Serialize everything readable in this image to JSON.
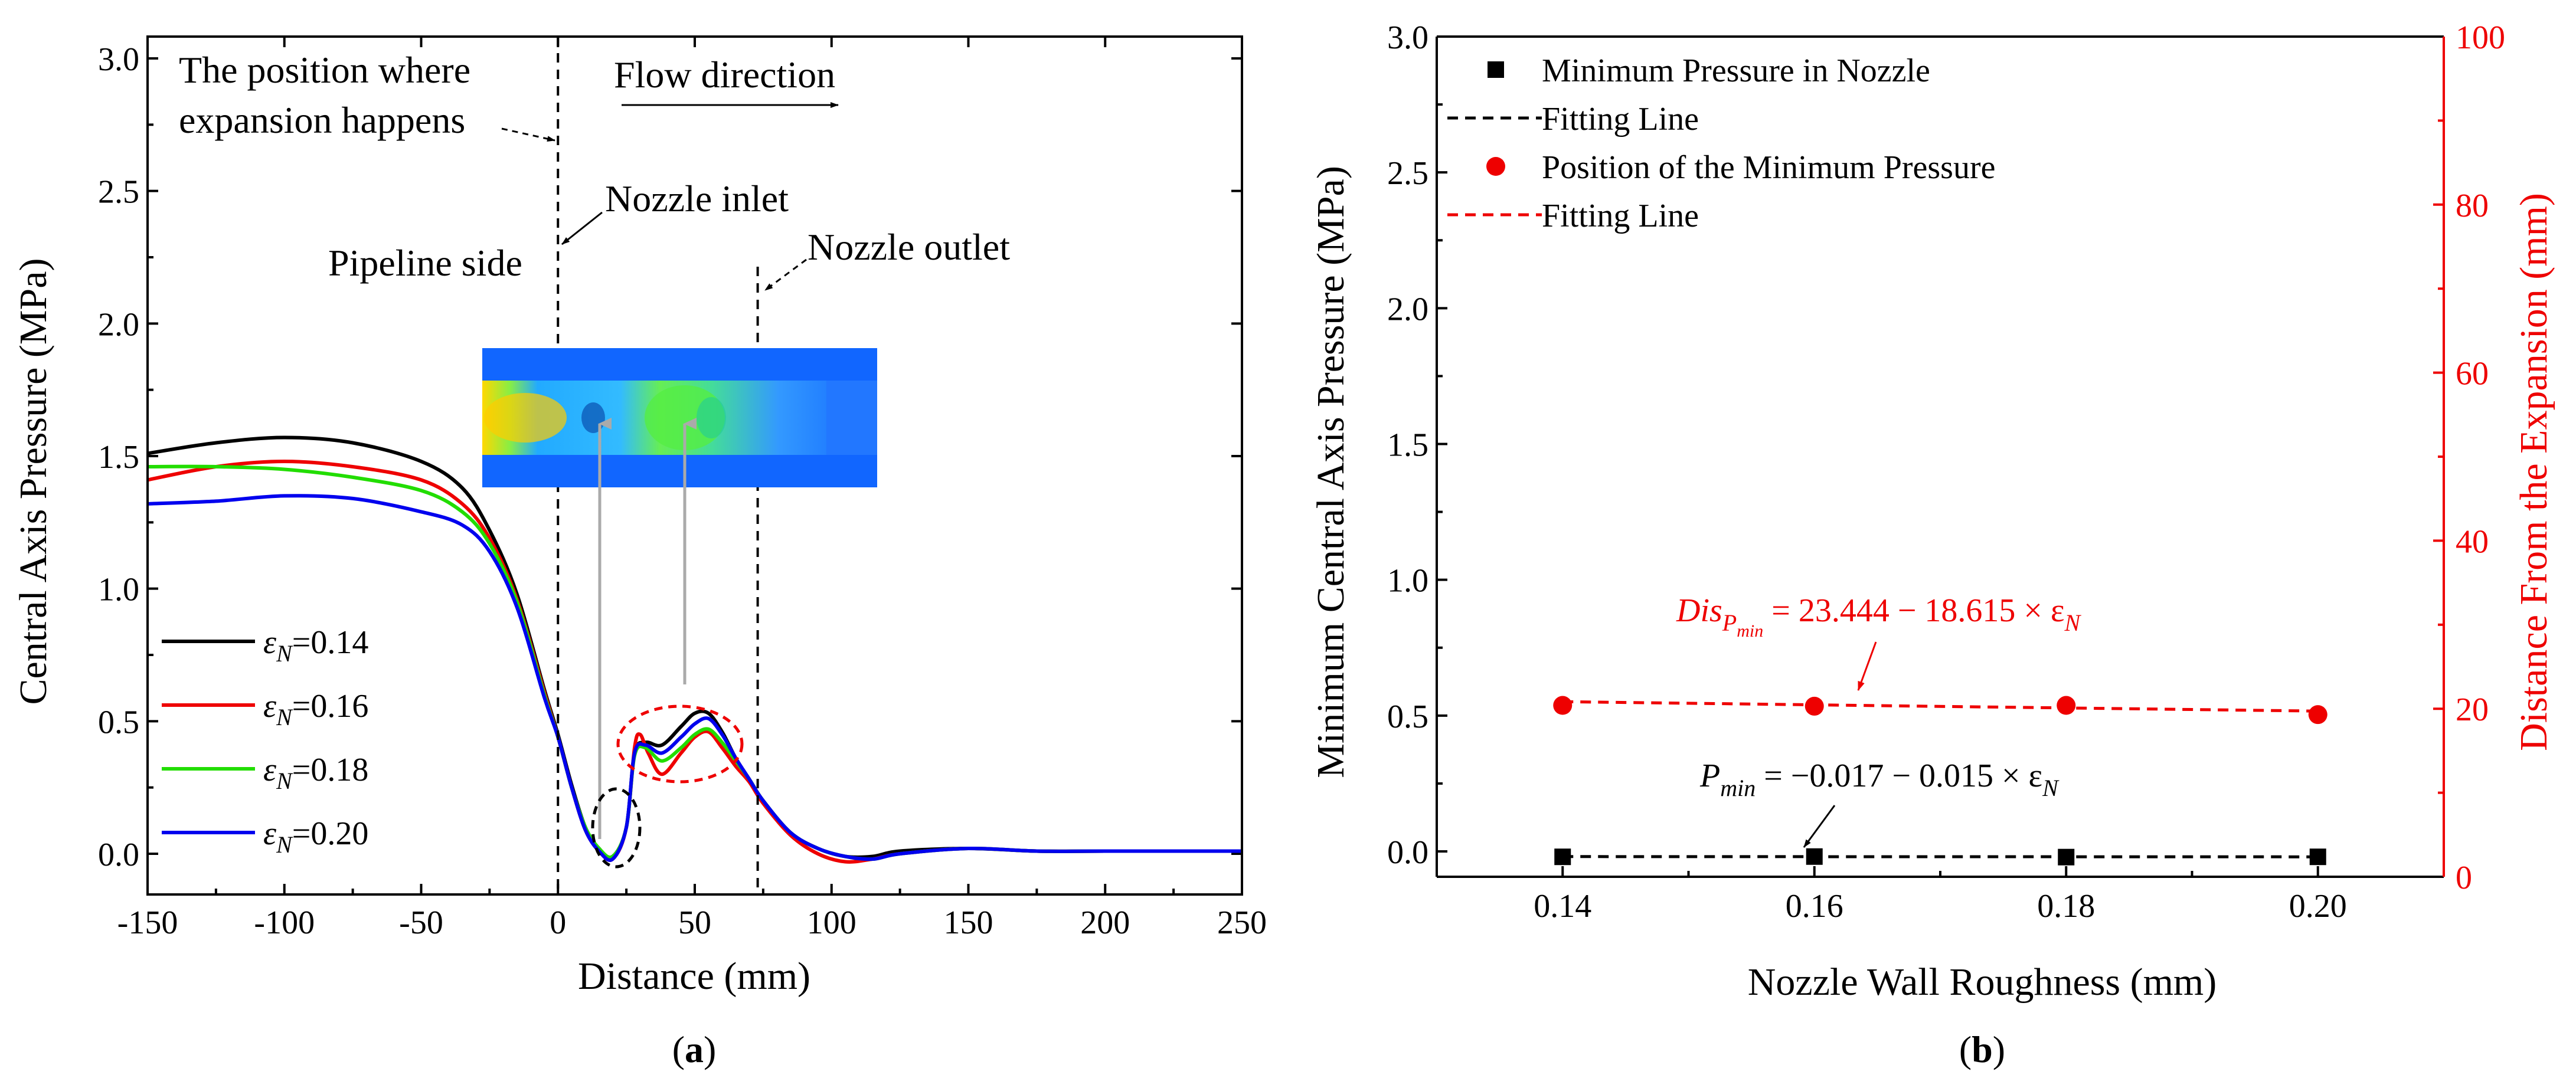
{
  "chart_data": [
    {
      "panel": "(a)",
      "panel_letter": "a",
      "type": "line",
      "xlabel": "Distance (mm)",
      "ylabel": "Central Axis Pressure (MPa)",
      "xlim": [
        -150,
        250
      ],
      "ylim": [
        0,
        3.0
      ],
      "xticks": [
        -150,
        -100,
        -50,
        0,
        50,
        100,
        150,
        200,
        250
      ],
      "yticks": [
        0.0,
        0.5,
        1.0,
        1.5,
        2.0,
        2.5,
        3.0
      ],
      "ytick_labels": [
        "0.0",
        "0.5",
        "1.0",
        "1.5",
        "2.0",
        "2.5",
        "3.0"
      ],
      "vlines": [
        0,
        73
      ],
      "annotations": {
        "expansion_line1": "The position where",
        "expansion_line2": "expansion happens",
        "flow": "Flow direction",
        "nozzle_inlet": "Nozzle inlet",
        "pipeline_side": "Pipeline side",
        "nozzle_outlet": "Nozzle outlet"
      },
      "legend_symbol": "ε",
      "legend_sub": "N",
      "series": [
        {
          "name": "εN=0.14",
          "value_label": "=0.14",
          "color": "#000000",
          "x": [
            -150,
            -125,
            -100,
            -75,
            -50,
            -35,
            -25,
            -15,
            -5,
            0,
            5,
            10,
            15,
            20,
            25,
            28,
            32,
            38,
            45,
            50,
            55,
            60,
            65,
            70,
            75,
            85,
            95,
            105,
            115,
            125,
            150,
            175,
            200,
            250
          ],
          "y": [
            1.51,
            1.55,
            1.57,
            1.55,
            1.48,
            1.38,
            1.22,
            0.98,
            0.62,
            0.45,
            0.26,
            0.1,
            0.02,
            -0.01,
            0.1,
            0.38,
            0.42,
            0.41,
            0.48,
            0.53,
            0.53,
            0.46,
            0.36,
            0.28,
            0.2,
            0.08,
            0.02,
            -0.01,
            -0.01,
            0.01,
            0.02,
            0.01,
            0.01,
            0.01
          ]
        },
        {
          "name": "εN=0.16",
          "value_label": "=0.16",
          "color": "#ee0000",
          "x": [
            -150,
            -125,
            -100,
            -75,
            -50,
            -35,
            -25,
            -15,
            -5,
            0,
            5,
            10,
            15,
            20,
            25,
            28,
            30,
            33,
            38,
            45,
            50,
            55,
            60,
            65,
            70,
            75,
            85,
            95,
            105,
            115,
            125,
            150,
            175,
            200,
            250
          ],
          "y": [
            1.41,
            1.46,
            1.48,
            1.46,
            1.41,
            1.32,
            1.19,
            0.96,
            0.61,
            0.44,
            0.25,
            0.09,
            0.01,
            -0.02,
            0.1,
            0.4,
            0.45,
            0.38,
            0.3,
            0.38,
            0.44,
            0.46,
            0.4,
            0.33,
            0.27,
            0.19,
            0.07,
            0.0,
            -0.03,
            -0.02,
            0.0,
            0.02,
            0.01,
            0.01,
            0.01
          ]
        },
        {
          "name": "εN=0.18",
          "value_label": "=0.18",
          "color": "#22dd00",
          "x": [
            -150,
            -125,
            -100,
            -75,
            -50,
            -35,
            -25,
            -15,
            -5,
            0,
            5,
            10,
            15,
            20,
            25,
            28,
            32,
            38,
            45,
            50,
            55,
            60,
            65,
            70,
            75,
            85,
            95,
            105,
            115,
            125,
            150,
            175,
            200,
            250
          ],
          "y": [
            1.46,
            1.46,
            1.45,
            1.42,
            1.37,
            1.29,
            1.17,
            0.95,
            0.6,
            0.44,
            0.25,
            0.1,
            0.02,
            -0.01,
            0.1,
            0.37,
            0.4,
            0.35,
            0.4,
            0.45,
            0.47,
            0.42,
            0.35,
            0.28,
            0.2,
            0.08,
            0.02,
            -0.01,
            -0.02,
            0.0,
            0.02,
            0.01,
            0.01,
            0.01
          ]
        },
        {
          "name": "εN=0.20",
          "value_label": "=0.20",
          "color": "#0000ee",
          "x": [
            -150,
            -125,
            -100,
            -75,
            -50,
            -35,
            -25,
            -15,
            -5,
            0,
            5,
            10,
            15,
            20,
            25,
            28,
            32,
            38,
            45,
            50,
            55,
            60,
            65,
            70,
            75,
            85,
            95,
            105,
            115,
            125,
            150,
            175,
            200,
            250
          ],
          "y": [
            1.32,
            1.33,
            1.35,
            1.34,
            1.29,
            1.24,
            1.14,
            0.93,
            0.59,
            0.44,
            0.25,
            0.09,
            0.01,
            -0.02,
            0.1,
            0.38,
            0.41,
            0.38,
            0.44,
            0.49,
            0.51,
            0.45,
            0.36,
            0.28,
            0.2,
            0.08,
            0.02,
            -0.01,
            -0.02,
            0.0,
            0.02,
            0.01,
            0.01,
            0.01
          ]
        }
      ]
    },
    {
      "panel": "(b)",
      "panel_letter": "b",
      "type": "scatter",
      "xlabel": "Nozzle Wall Roughness (mm)",
      "ylabel": "Minimum Central Axis Pressure (MPa)",
      "y2label": "Distance From the Expansion (mm)",
      "xlim": [
        0.13,
        0.21
      ],
      "xticks": [
        0.14,
        0.16,
        0.18,
        0.2
      ],
      "xtick_labels": [
        "0.14",
        "0.16",
        "0.18",
        "0.20"
      ],
      "ylim": [
        0,
        3.0
      ],
      "yticks": [
        0.0,
        0.5,
        1.0,
        1.5,
        2.0,
        2.5,
        3.0
      ],
      "ytick_labels": [
        "0.0",
        "0.5",
        "1.0",
        "1.5",
        "2.0",
        "2.5",
        "3.0"
      ],
      "y2lim": [
        0,
        100
      ],
      "y2ticks": [
        0,
        20,
        40,
        60,
        80,
        100
      ],
      "legend": [
        "Minimum Pressure in Nozzle",
        "Fitting Line",
        "Position of the Minimum Pressure",
        "Fitting Line"
      ],
      "equations": {
        "dis_base": "Dis",
        "dis_sub_p": "P",
        "dis_sub_min": "min",
        "dis_rhs": " = 23.444 − 18.615 × ε",
        "dis_rhs_sub": "N",
        "p_base": "P",
        "p_sub": "min",
        "p_rhs": " = −0.017 − 0.015 × ε",
        "p_rhs_sub": "N"
      },
      "series": [
        {
          "name": "Minimum Pressure in Nozzle",
          "axis": "left",
          "marker": "square",
          "color": "#000000",
          "x": [
            0.14,
            0.16,
            0.18,
            0.2
          ],
          "y": [
            -0.02,
            -0.019,
            -0.021,
            -0.02
          ]
        },
        {
          "name": "Fitting Line",
          "axis": "left",
          "style": "dashed",
          "color": "#000000",
          "x": [
            0.14,
            0.2
          ],
          "y": [
            -0.0191,
            -0.02
          ]
        },
        {
          "name": "Position of the Minimum Pressure",
          "axis": "right",
          "marker": "circle",
          "color": "#ee0000",
          "x": [
            0.14,
            0.16,
            0.18,
            0.2
          ],
          "y": [
            20.4,
            20.3,
            20.4,
            19.3
          ]
        },
        {
          "name": "Fitting Line",
          "axis": "right",
          "style": "dashed",
          "color": "#ee0000",
          "x": [
            0.14,
            0.2
          ],
          "y": [
            20.84,
            19.72
          ]
        }
      ]
    }
  ]
}
